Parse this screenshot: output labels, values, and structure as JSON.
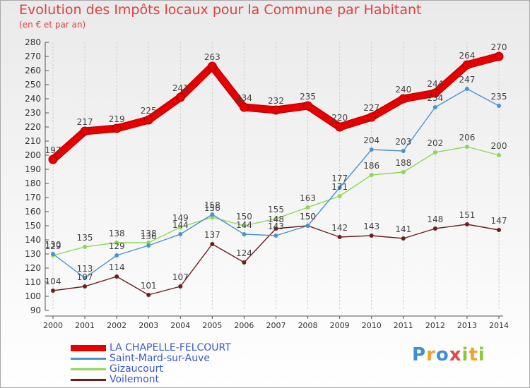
{
  "page": {
    "title": "Evolution des Impôts locaux pour la Commune par Habitant",
    "subtitle": "(en € et par an)"
  },
  "chart_data": {
    "type": "line",
    "title": "Evolution des Impôts locaux pour la Commune par Habitant",
    "subtitle": "(en € et par an)",
    "xlabel": "",
    "ylabel": "",
    "ylim": [
      90,
      280
    ],
    "yticks": [
      90,
      100,
      110,
      120,
      130,
      140,
      150,
      160,
      170,
      180,
      190,
      200,
      210,
      220,
      230,
      240,
      250,
      260,
      270,
      280
    ],
    "categories": [
      "2000",
      "2001",
      "2002",
      "2003",
      "2004",
      "2005",
      "2006",
      "2007",
      "2008",
      "2009",
      "2010",
      "2011",
      "2012",
      "2013",
      "2014"
    ],
    "grid": "vertical",
    "legend_position": "bottom-left",
    "series": [
      {
        "name": "LA CHAPELLE-FELCOURT",
        "color": "#e60000",
        "values": [
          197,
          217,
          219,
          225,
          241,
          263,
          234,
          232,
          235,
          220,
          227,
          240,
          244,
          264,
          270
        ]
      },
      {
        "name": "Saint-Mard-sur-Auve",
        "color": "#4a93cf",
        "values": [
          130,
          113,
          129,
          136,
          144,
          158,
          144,
          143,
          150,
          177,
          204,
          203,
          234,
          247,
          235
        ]
      },
      {
        "name": "Gizaucourt",
        "color": "#8fd65a",
        "values": [
          129,
          135,
          138,
          138,
          149,
          156,
          150,
          155,
          163,
          171,
          186,
          188,
          202,
          206,
          200
        ]
      },
      {
        "name": "Voilemont",
        "color": "#6b1f1f",
        "values": [
          104,
          107,
          114,
          101,
          107,
          137,
          124,
          148,
          150,
          142,
          143,
          141,
          148,
          151,
          147
        ]
      }
    ]
  },
  "logo": {
    "text": "Proxiti",
    "letters": [
      {
        "ch": "P",
        "color": "#3f8fd0"
      },
      {
        "ch": "r",
        "color": "#f0a030"
      },
      {
        "ch": "o",
        "color": "#3f8fd0"
      },
      {
        "ch": "x",
        "color": "#e04848"
      },
      {
        "ch": "i",
        "color": "#8cc63f"
      },
      {
        "ch": "t",
        "color": "#f0a030"
      },
      {
        "ch": "i",
        "color": "#8cc63f"
      }
    ]
  }
}
